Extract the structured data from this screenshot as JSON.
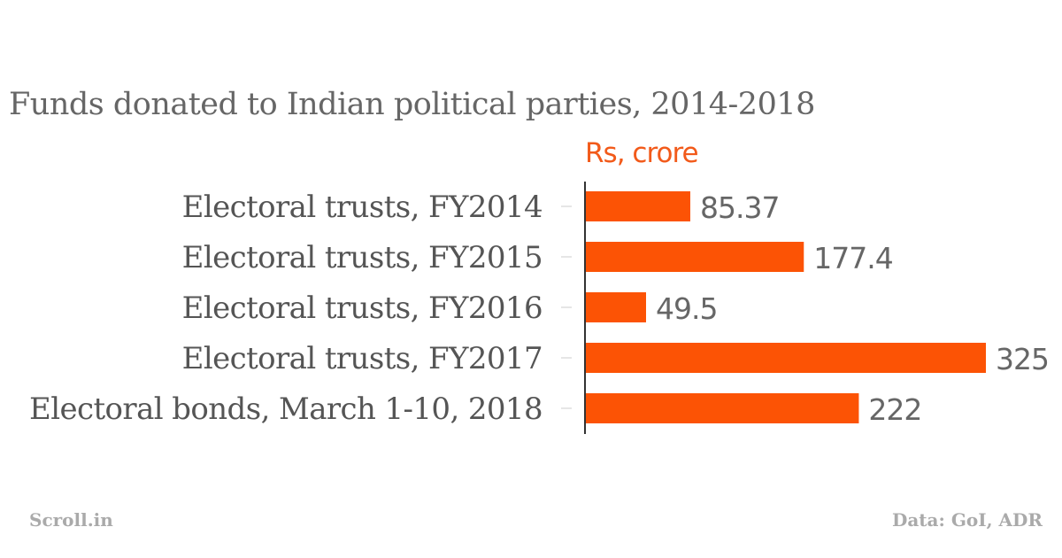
{
  "chart_data": {
    "type": "bar",
    "orientation": "horizontal",
    "title": "Funds donated to Indian political parties, 2014-2018",
    "unit_label": "Rs, crore",
    "categories": [
      "Electoral trusts, FY2014",
      "Electoral trusts, FY2015",
      "Electoral trusts, FY2016",
      "Electoral trusts, FY2017",
      "Electoral bonds, March 1-10, 2018"
    ],
    "values": [
      85.37,
      177.4,
      49.5,
      325,
      222
    ],
    "value_labels": [
      "85.37",
      "177.4",
      "49.5",
      "325",
      "222"
    ],
    "bar_color": "#fc5305",
    "grid": false,
    "xlim": [
      0,
      325
    ]
  },
  "footer": {
    "source_left": "Scroll.in",
    "source_right": "Data: GoI, ADR"
  }
}
